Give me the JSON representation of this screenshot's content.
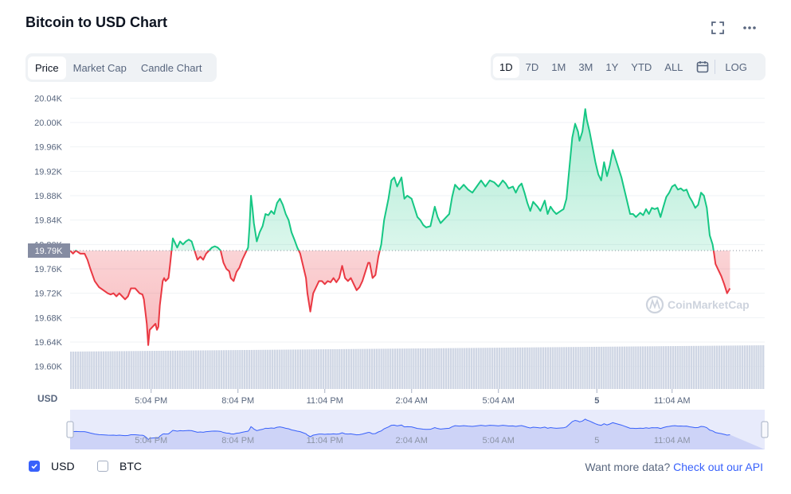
{
  "title": "Bitcoin to USD Chart",
  "icons": {
    "fullscreen": "fullscreen-icon",
    "more": "more-icon",
    "calendar": "calendar-icon",
    "logo": "coinmarketcap-logo"
  },
  "tabs": [
    {
      "label": "Price",
      "active": true
    },
    {
      "label": "Market Cap",
      "active": false
    },
    {
      "label": "Candle Chart",
      "active": false
    }
  ],
  "ranges": [
    {
      "label": "1D",
      "active": true
    },
    {
      "label": "7D",
      "active": false
    },
    {
      "label": "1M",
      "active": false
    },
    {
      "label": "3M",
      "active": false
    },
    {
      "label": "1Y",
      "active": false
    },
    {
      "label": "YTD",
      "active": false
    },
    {
      "label": "ALL",
      "active": false
    }
  ],
  "log_label": "LOG",
  "watermark": "CoinMarketCap",
  "currency_label": "USD",
  "legend": [
    {
      "label": "USD",
      "checked": true
    },
    {
      "label": "BTC",
      "checked": false
    }
  ],
  "footer": {
    "text": "Want more data?",
    "link": "Check out our API"
  },
  "colors": {
    "up": "#16c784",
    "down": "#ea3943",
    "accent": "#3861fb",
    "volume": "#cfd6e4"
  },
  "chart_data": {
    "type": "area",
    "ylabel": "USD",
    "baseline": 19.79,
    "baseline_label": "19.79K",
    "yticks": [
      {
        "v": 20.04,
        "label": "20.04K"
      },
      {
        "v": 20.0,
        "label": "20.00K"
      },
      {
        "v": 19.96,
        "label": "19.96K"
      },
      {
        "v": 19.92,
        "label": "19.92K"
      },
      {
        "v": 19.88,
        "label": "19.88K"
      },
      {
        "v": 19.84,
        "label": "19.84K"
      },
      {
        "v": 19.8,
        "label": "19.80K"
      },
      {
        "v": 19.76,
        "label": "19.76K"
      },
      {
        "v": 19.72,
        "label": "19.72K"
      },
      {
        "v": 19.68,
        "label": "19.68K"
      },
      {
        "v": 19.64,
        "label": "19.64K"
      },
      {
        "v": 19.6,
        "label": "19.60K"
      }
    ],
    "ylim": [
      19.56,
      20.06
    ],
    "xlim": [
      0,
      24
    ],
    "xticks": [
      {
        "x": 2.8,
        "label": "5:04 PM"
      },
      {
        "x": 5.8,
        "label": "8:04 PM"
      },
      {
        "x": 8.8,
        "label": "11:04 PM"
      },
      {
        "x": 11.8,
        "label": "2:04 AM"
      },
      {
        "x": 14.8,
        "label": "5:04 AM"
      },
      {
        "x": 18.2,
        "label": "5"
      },
      {
        "x": 20.8,
        "label": "11:04 AM"
      }
    ],
    "price_unit": "K USD",
    "series": [
      {
        "values": [
          [
            0,
            19.79
          ],
          [
            0.1,
            19.785
          ],
          [
            0.2,
            19.79
          ],
          [
            0.35,
            19.785
          ],
          [
            0.5,
            19.785
          ],
          [
            0.6,
            19.775
          ],
          [
            0.7,
            19.76
          ],
          [
            0.85,
            19.74
          ],
          [
            1.0,
            19.73
          ],
          [
            1.15,
            19.725
          ],
          [
            1.3,
            19.72
          ],
          [
            1.4,
            19.718
          ],
          [
            1.5,
            19.72
          ],
          [
            1.6,
            19.715
          ],
          [
            1.7,
            19.72
          ],
          [
            1.8,
            19.715
          ],
          [
            1.9,
            19.71
          ],
          [
            2.0,
            19.715
          ],
          [
            2.1,
            19.728
          ],
          [
            2.25,
            19.728
          ],
          [
            2.4,
            19.72
          ],
          [
            2.5,
            19.718
          ],
          [
            2.55,
            19.71
          ],
          [
            2.6,
            19.69
          ],
          [
            2.65,
            19.67
          ],
          [
            2.7,
            19.635
          ],
          [
            2.75,
            19.66
          ],
          [
            2.85,
            19.665
          ],
          [
            2.95,
            19.67
          ],
          [
            3.0,
            19.66
          ],
          [
            3.05,
            19.665
          ],
          [
            3.1,
            19.7
          ],
          [
            3.2,
            19.74
          ],
          [
            3.25,
            19.745
          ],
          [
            3.3,
            19.74
          ],
          [
            3.4,
            19.745
          ],
          [
            3.45,
            19.765
          ],
          [
            3.55,
            19.81
          ],
          [
            3.65,
            19.8
          ],
          [
            3.7,
            19.795
          ],
          [
            3.8,
            19.805
          ],
          [
            3.9,
            19.8
          ],
          [
            4.0,
            19.805
          ],
          [
            4.1,
            19.808
          ],
          [
            4.2,
            19.805
          ],
          [
            4.3,
            19.79
          ],
          [
            4.4,
            19.775
          ],
          [
            4.5,
            19.78
          ],
          [
            4.6,
            19.775
          ],
          [
            4.7,
            19.785
          ],
          [
            4.8,
            19.79
          ],
          [
            4.9,
            19.795
          ],
          [
            5.0,
            19.797
          ],
          [
            5.1,
            19.795
          ],
          [
            5.2,
            19.79
          ],
          [
            5.3,
            19.77
          ],
          [
            5.4,
            19.76
          ],
          [
            5.5,
            19.756
          ],
          [
            5.55,
            19.745
          ],
          [
            5.65,
            19.74
          ],
          [
            5.75,
            19.755
          ],
          [
            5.85,
            19.762
          ],
          [
            5.95,
            19.775
          ],
          [
            6.05,
            19.785
          ],
          [
            6.15,
            19.795
          ],
          [
            6.2,
            19.83
          ],
          [
            6.25,
            19.88
          ],
          [
            6.3,
            19.86
          ],
          [
            6.35,
            19.835
          ],
          [
            6.4,
            19.82
          ],
          [
            6.45,
            19.805
          ],
          [
            6.55,
            19.82
          ],
          [
            6.65,
            19.83
          ],
          [
            6.75,
            19.85
          ],
          [
            6.85,
            19.848
          ],
          [
            6.95,
            19.855
          ],
          [
            7.05,
            19.85
          ],
          [
            7.15,
            19.868
          ],
          [
            7.25,
            19.875
          ],
          [
            7.35,
            19.865
          ],
          [
            7.45,
            19.85
          ],
          [
            7.55,
            19.84
          ],
          [
            7.65,
            19.82
          ],
          [
            7.75,
            19.808
          ],
          [
            7.85,
            19.795
          ],
          [
            7.95,
            19.785
          ],
          [
            8.05,
            19.765
          ],
          [
            8.15,
            19.745
          ],
          [
            8.2,
            19.72
          ],
          [
            8.25,
            19.705
          ],
          [
            8.3,
            19.69
          ],
          [
            8.4,
            19.72
          ],
          [
            8.5,
            19.73
          ],
          [
            8.6,
            19.74
          ],
          [
            8.7,
            19.74
          ],
          [
            8.8,
            19.735
          ],
          [
            8.9,
            19.74
          ],
          [
            9.0,
            19.738
          ],
          [
            9.1,
            19.745
          ],
          [
            9.2,
            19.738
          ],
          [
            9.3,
            19.745
          ],
          [
            9.4,
            19.765
          ],
          [
            9.5,
            19.745
          ],
          [
            9.6,
            19.74
          ],
          [
            9.7,
            19.745
          ],
          [
            9.8,
            19.735
          ],
          [
            9.9,
            19.725
          ],
          [
            10.0,
            19.73
          ],
          [
            10.1,
            19.74
          ],
          [
            10.2,
            19.755
          ],
          [
            10.3,
            19.77
          ],
          [
            10.35,
            19.77
          ],
          [
            10.45,
            19.745
          ],
          [
            10.55,
            19.75
          ],
          [
            10.65,
            19.78
          ],
          [
            10.75,
            19.8
          ],
          [
            10.85,
            19.84
          ],
          [
            11.0,
            19.875
          ],
          [
            11.1,
            19.905
          ],
          [
            11.2,
            19.91
          ],
          [
            11.3,
            19.895
          ],
          [
            11.45,
            19.91
          ],
          [
            11.55,
            19.875
          ],
          [
            11.65,
            19.88
          ],
          [
            11.8,
            19.875
          ],
          [
            11.9,
            19.86
          ],
          [
            12.0,
            19.845
          ],
          [
            12.1,
            19.84
          ],
          [
            12.2,
            19.832
          ],
          [
            12.3,
            19.828
          ],
          [
            12.45,
            19.83
          ],
          [
            12.6,
            19.862
          ],
          [
            12.7,
            19.845
          ],
          [
            12.8,
            19.835
          ],
          [
            12.9,
            19.84
          ],
          [
            13.0,
            19.845
          ],
          [
            13.1,
            19.85
          ],
          [
            13.2,
            19.878
          ],
          [
            13.3,
            19.898
          ],
          [
            13.45,
            19.89
          ],
          [
            13.6,
            19.898
          ],
          [
            13.75,
            19.89
          ],
          [
            13.9,
            19.885
          ],
          [
            14.05,
            19.895
          ],
          [
            14.2,
            19.905
          ],
          [
            14.35,
            19.895
          ],
          [
            14.5,
            19.905
          ],
          [
            14.65,
            19.902
          ],
          [
            14.8,
            19.895
          ],
          [
            14.95,
            19.905
          ],
          [
            15.05,
            19.9
          ],
          [
            15.15,
            19.892
          ],
          [
            15.3,
            19.895
          ],
          [
            15.4,
            19.885
          ],
          [
            15.5,
            19.895
          ],
          [
            15.6,
            19.9
          ],
          [
            15.7,
            19.885
          ],
          [
            15.8,
            19.868
          ],
          [
            15.9,
            19.855
          ],
          [
            16.0,
            19.87
          ],
          [
            16.15,
            19.862
          ],
          [
            16.25,
            19.855
          ],
          [
            16.4,
            19.872
          ],
          [
            16.5,
            19.85
          ],
          [
            16.6,
            19.862
          ],
          [
            16.7,
            19.855
          ],
          [
            16.8,
            19.85
          ],
          [
            16.95,
            19.855
          ],
          [
            17.05,
            19.858
          ],
          [
            17.15,
            19.875
          ],
          [
            17.25,
            19.925
          ],
          [
            17.35,
            19.975
          ],
          [
            17.45,
            19.998
          ],
          [
            17.55,
            19.985
          ],
          [
            17.6,
            19.97
          ],
          [
            17.7,
            19.985
          ],
          [
            17.8,
            20.022
          ],
          [
            17.85,
            20.005
          ],
          [
            17.95,
            19.985
          ],
          [
            18.05,
            19.96
          ],
          [
            18.15,
            19.935
          ],
          [
            18.25,
            19.915
          ],
          [
            18.35,
            19.905
          ],
          [
            18.45,
            19.935
          ],
          [
            18.55,
            19.912
          ],
          [
            18.65,
            19.93
          ],
          [
            18.75,
            19.955
          ],
          [
            18.85,
            19.94
          ],
          [
            18.95,
            19.925
          ],
          [
            19.05,
            19.91
          ],
          [
            19.15,
            19.89
          ],
          [
            19.25,
            19.87
          ],
          [
            19.35,
            19.85
          ],
          [
            19.45,
            19.85
          ],
          [
            19.55,
            19.845
          ],
          [
            19.7,
            19.852
          ],
          [
            19.8,
            19.848
          ],
          [
            19.9,
            19.858
          ],
          [
            20.0,
            19.85
          ],
          [
            20.1,
            19.86
          ],
          [
            20.2,
            19.858
          ],
          [
            20.3,
            19.86
          ],
          [
            20.4,
            19.845
          ],
          [
            20.5,
            19.862
          ],
          [
            20.6,
            19.878
          ],
          [
            20.7,
            19.885
          ],
          [
            20.8,
            19.895
          ],
          [
            20.9,
            19.898
          ],
          [
            21.0,
            19.89
          ],
          [
            21.1,
            19.892
          ],
          [
            21.2,
            19.888
          ],
          [
            21.3,
            19.89
          ],
          [
            21.4,
            19.878
          ],
          [
            21.5,
            19.87
          ],
          [
            21.6,
            19.86
          ],
          [
            21.7,
            19.865
          ],
          [
            21.8,
            19.885
          ],
          [
            21.9,
            19.88
          ],
          [
            22.0,
            19.86
          ],
          [
            22.1,
            19.815
          ],
          [
            22.2,
            19.8
          ],
          [
            22.25,
            19.785
          ],
          [
            22.3,
            19.768
          ],
          [
            22.4,
            19.758
          ],
          [
            22.5,
            19.748
          ],
          [
            22.6,
            19.735
          ],
          [
            22.7,
            19.72
          ],
          [
            22.8,
            19.728
          ]
        ]
      }
    ]
  }
}
